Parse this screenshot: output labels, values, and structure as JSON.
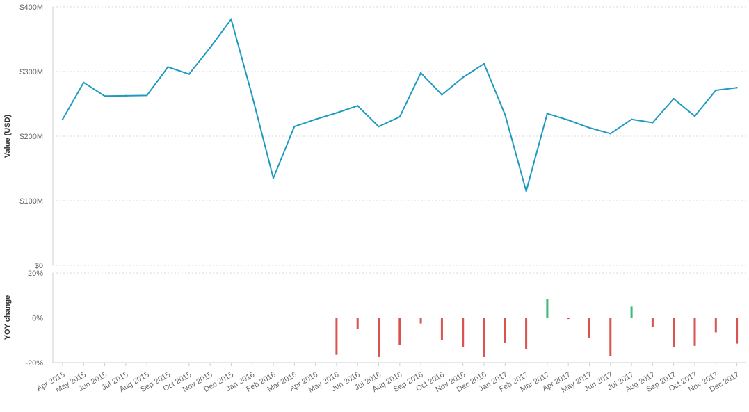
{
  "chart_data": [
    {
      "type": "line",
      "ylabel": "Value (USD)",
      "ylim": [
        0,
        400000000
      ],
      "yticks": [
        {
          "value": 0,
          "label": "$0"
        },
        {
          "value": 100000000,
          "label": "$100M"
        },
        {
          "value": 200000000,
          "label": "$200M"
        },
        {
          "value": 300000000,
          "label": "$300M"
        },
        {
          "value": 400000000,
          "label": "$400M"
        }
      ],
      "grid": true,
      "color": "#1f9ac0",
      "x": [
        "Apr 2015",
        "May 2015",
        "Jun 2015",
        "Jul 2015",
        "Aug 2015",
        "Sep 2015",
        "Oct 2015",
        "Nov 2015",
        "Dec 2015",
        "Jan 2016",
        "Feb 2016",
        "Mar 2016",
        "Apr 2016",
        "May 2016",
        "Jun 2016",
        "Jul 2016",
        "Aug 2016",
        "Sep 2016",
        "Oct 2016",
        "Nov 2016",
        "Dec 2016",
        "Jan 2017",
        "Feb 2017",
        "Mar 2017",
        "Apr 2017",
        "May 2017",
        "Jun 2017",
        "Jul 2017",
        "Aug 2017",
        "Sep 2017",
        "Oct 2017",
        "Nov 2017",
        "Dec 2017"
      ],
      "values": [
        226000000,
        283000000,
        262000000,
        262500000,
        263000000,
        307000000,
        296000000,
        337000000,
        381000000,
        262000000,
        135000000,
        215000000,
        226000000,
        236000000,
        247000000,
        215000000,
        230000000,
        298000000,
        264000000,
        291000000,
        312000000,
        233000000,
        115000000,
        235000000,
        225000000,
        213000000,
        204000000,
        226000000,
        221000000,
        258000000,
        231000000,
        271000000,
        275000000
      ]
    },
    {
      "type": "bar",
      "ylabel": "YOY change",
      "ylim": [
        -20,
        20
      ],
      "yticks": [
        {
          "value": -20,
          "label": "-20%"
        },
        {
          "value": 0,
          "label": "0%"
        },
        {
          "value": 20,
          "label": "20%"
        }
      ],
      "grid": true,
      "positive_color": "#3cb878",
      "negative_color": "#d9534f",
      "categories": [
        "Apr 2015",
        "May 2015",
        "Jun 2015",
        "Jul 2015",
        "Aug 2015",
        "Sep 2015",
        "Oct 2015",
        "Nov 2015",
        "Dec 2015",
        "Jan 2016",
        "Feb 2016",
        "Mar 2016",
        "Apr 2016",
        "May 2016",
        "Jun 2016",
        "Jul 2016",
        "Aug 2016",
        "Sep 2016",
        "Oct 2016",
        "Nov 2016",
        "Dec 2016",
        "Jan 2017",
        "Feb 2017",
        "Mar 2017",
        "Apr 2017",
        "May 2017",
        "Jun 2017",
        "Jul 2017",
        "Aug 2017",
        "Sep 2017",
        "Oct 2017",
        "Nov 2017",
        "Dec 2017"
      ],
      "values": [
        null,
        null,
        null,
        null,
        null,
        null,
        null,
        null,
        null,
        null,
        null,
        null,
        null,
        -16.5,
        -5,
        -17.5,
        -12,
        -2.5,
        -10,
        -13,
        -17.5,
        -11,
        -14,
        8.5,
        -0.5,
        -9,
        -17,
        5,
        -4,
        -13,
        -12.5,
        -6.5,
        -11.5
      ]
    }
  ]
}
